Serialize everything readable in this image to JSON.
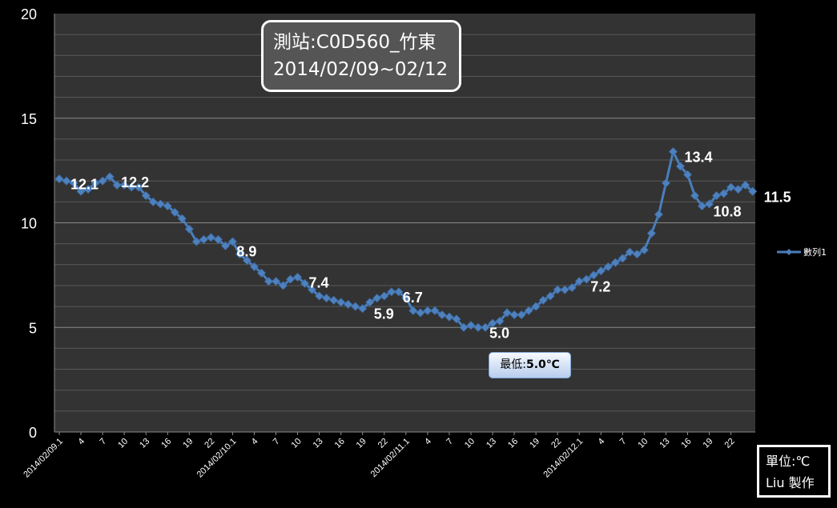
{
  "chart_data": {
    "type": "line",
    "title_lines": [
      "測站:C0D560_竹東",
      "2014/02/09~02/12"
    ],
    "ylim": [
      0,
      20
    ],
    "yticks": [
      "0",
      "5",
      "10",
      "15",
      "20"
    ],
    "grid": true,
    "legend_position": "right",
    "x_tick_labels": [
      {
        "i": 0,
        "label": "2014/02/09.1"
      },
      {
        "i": 3,
        "label": "4"
      },
      {
        "i": 6,
        "label": "7"
      },
      {
        "i": 9,
        "label": "10"
      },
      {
        "i": 12,
        "label": "13"
      },
      {
        "i": 15,
        "label": "16"
      },
      {
        "i": 18,
        "label": "19"
      },
      {
        "i": 21,
        "label": "22"
      },
      {
        "i": 24,
        "label": "2014/02/10.1"
      },
      {
        "i": 27,
        "label": "4"
      },
      {
        "i": 30,
        "label": "7"
      },
      {
        "i": 33,
        "label": "10"
      },
      {
        "i": 36,
        "label": "13"
      },
      {
        "i": 39,
        "label": "16"
      },
      {
        "i": 42,
        "label": "19"
      },
      {
        "i": 45,
        "label": "22"
      },
      {
        "i": 48,
        "label": "2014/02/11.1"
      },
      {
        "i": 51,
        "label": "4"
      },
      {
        "i": 54,
        "label": "7"
      },
      {
        "i": 57,
        "label": "10"
      },
      {
        "i": 60,
        "label": "13"
      },
      {
        "i": 63,
        "label": "16"
      },
      {
        "i": 66,
        "label": "19"
      },
      {
        "i": 69,
        "label": "22"
      },
      {
        "i": 72,
        "label": "2014/02/12.1"
      },
      {
        "i": 75,
        "label": "4"
      },
      {
        "i": 78,
        "label": "7"
      },
      {
        "i": 81,
        "label": "10"
      },
      {
        "i": 84,
        "label": "13"
      },
      {
        "i": 87,
        "label": "16"
      },
      {
        "i": 90,
        "label": "19"
      },
      {
        "i": 93,
        "label": "22"
      }
    ],
    "series": [
      {
        "name": "數列1",
        "color": "#4a7ebb",
        "values": [
          12.1,
          12.0,
          11.9,
          11.5,
          11.6,
          11.9,
          12.0,
          12.2,
          11.8,
          11.8,
          11.7,
          11.7,
          11.3,
          11.0,
          10.9,
          10.8,
          10.5,
          10.2,
          9.7,
          9.1,
          9.2,
          9.3,
          9.2,
          8.9,
          9.1,
          8.5,
          8.2,
          7.9,
          7.6,
          7.2,
          7.2,
          7.0,
          7.3,
          7.4,
          7.1,
          6.8,
          6.5,
          6.4,
          6.3,
          6.2,
          6.1,
          6.0,
          5.9,
          6.2,
          6.4,
          6.5,
          6.7,
          6.7,
          6.4,
          5.8,
          5.7,
          5.8,
          5.8,
          5.6,
          5.5,
          5.4,
          5.0,
          5.1,
          5.0,
          5.0,
          5.2,
          5.3,
          5.7,
          5.6,
          5.6,
          5.8,
          6.0,
          6.3,
          6.5,
          6.8,
          6.8,
          6.9,
          7.2,
          7.3,
          7.5,
          7.7,
          7.9,
          8.1,
          8.3,
          8.6,
          8.5,
          8.7,
          9.5,
          10.4,
          11.9,
          13.4,
          12.7,
          12.3,
          11.3,
          10.8,
          10.9,
          11.3,
          11.4,
          11.7,
          11.6,
          11.8,
          11.5
        ]
      }
    ],
    "data_labels": [
      {
        "i": 0,
        "text": "12.1"
      },
      {
        "i": 7,
        "text": "12.2"
      },
      {
        "i": 23,
        "text": "8.9"
      },
      {
        "i": 33,
        "text": "7.4"
      },
      {
        "i": 42,
        "text": "5.9"
      },
      {
        "i": 46,
        "text": "6.7"
      },
      {
        "i": 58,
        "text": "5.0"
      },
      {
        "i": 72,
        "text": "7.2"
      },
      {
        "i": 85,
        "text": "13.4"
      },
      {
        "i": 89,
        "text": "10.8"
      },
      {
        "i": 96,
        "text": "11.5"
      }
    ]
  },
  "annotations": {
    "min_prefix": "最低:",
    "min_value": "5.0℃",
    "unit_line1": "單位:℃",
    "unit_line2": "Liu 製作"
  }
}
